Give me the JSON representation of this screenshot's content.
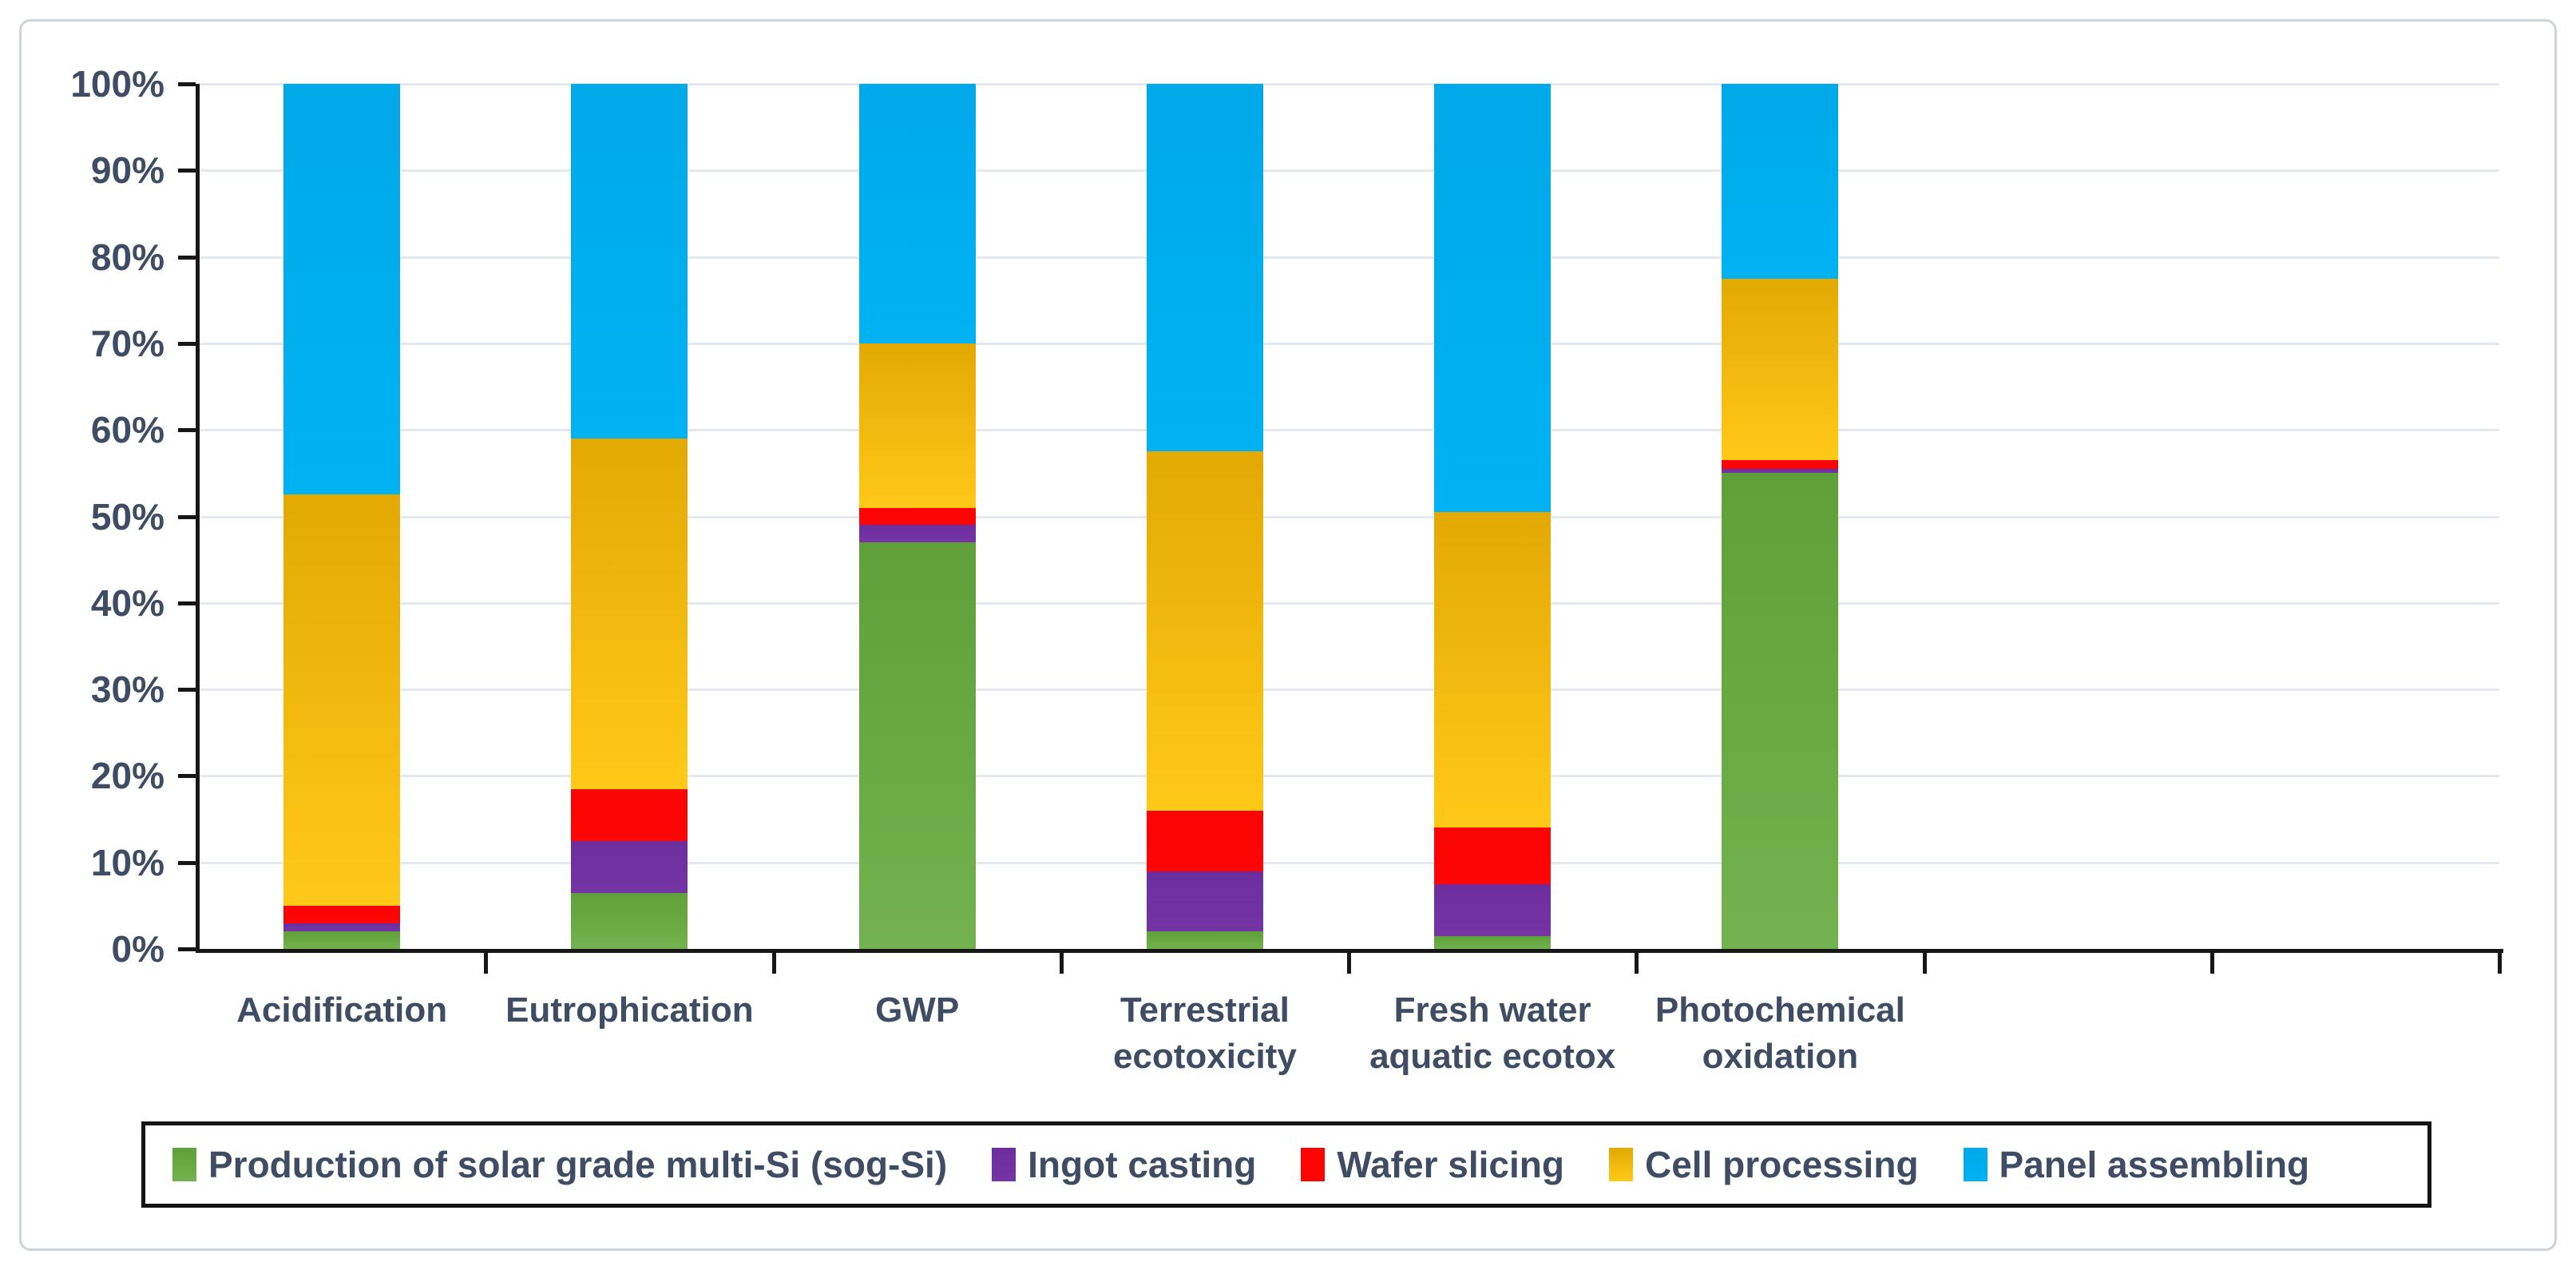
{
  "chart_data": {
    "type": "bar",
    "stacked": true,
    "title": "",
    "xlabel": "",
    "ylabel": "",
    "ylim": [
      0,
      100
    ],
    "grid": true,
    "legend_position": "bottom",
    "y_axis": {
      "tick_labels_top_to_bottom": [
        "100%",
        "90%",
        "80%",
        "70%",
        "60%",
        "50%",
        "40%",
        "30%",
        "20%",
        "10%",
        "0%"
      ],
      "unit": "percent"
    },
    "x_axis": {
      "total_category_slots": 8,
      "empty_trailing_slots": 2
    },
    "categories": [
      "Acidification",
      "Eutrophication",
      "GWP",
      "Terrestrial ecotoxicity",
      "Fresh water aquatic ecotox",
      "Photochemical oxidation"
    ],
    "category_lines": [
      [
        "Acidification"
      ],
      [
        "Eutrophication"
      ],
      [
        "GWP"
      ],
      [
        "Terrestrial",
        "ecotoxicity"
      ],
      [
        "Fresh water",
        "aquatic ecotox"
      ],
      [
        "Photochemical",
        "oxidation"
      ]
    ],
    "series_bottom_to_top": [
      {
        "name": "Production of solar grade multi-Si (sog-Si)",
        "color": "#6FAC47",
        "gradient": [
          "#5FA039",
          "#73B24E"
        ],
        "values": [
          2,
          6.5,
          47,
          2,
          1.5,
          55
        ]
      },
      {
        "name": "Ingot casting",
        "color": "#7030A0",
        "gradient": [
          "#6C2E9E",
          "#7534A4"
        ],
        "values": [
          1,
          6,
          2,
          7,
          6,
          0.5
        ]
      },
      {
        "name": "Wafer slicing",
        "color": "#FF0000",
        "gradient": [
          "#FA0404",
          "#FF0505"
        ],
        "values": [
          2,
          6,
          2,
          7,
          6.5,
          1
        ]
      },
      {
        "name": "Cell processing",
        "color": "#FFC117",
        "gradient": [
          "#E2A903",
          "#FFC918"
        ],
        "values": [
          47.5,
          40.5,
          19,
          41.5,
          36.5,
          21
        ]
      },
      {
        "name": "Panel assembling",
        "color": "#00B0F0",
        "gradient": [
          "#00A9E8",
          "#00B2F2"
        ],
        "values": [
          47.5,
          41,
          30,
          42.5,
          49.5,
          22.5
        ]
      }
    ]
  },
  "legend": {
    "entries": [
      "Production of solar grade multi-Si (sog-Si)",
      "Ingot casting",
      "Wafer slicing",
      "Cell processing",
      "Panel assembling"
    ]
  },
  "colors": {
    "text": "#3e4d63",
    "gridline": "#e4e9f0",
    "axis": "#161616",
    "frame_border": "#ccd3db",
    "background": "#ffffff"
  }
}
